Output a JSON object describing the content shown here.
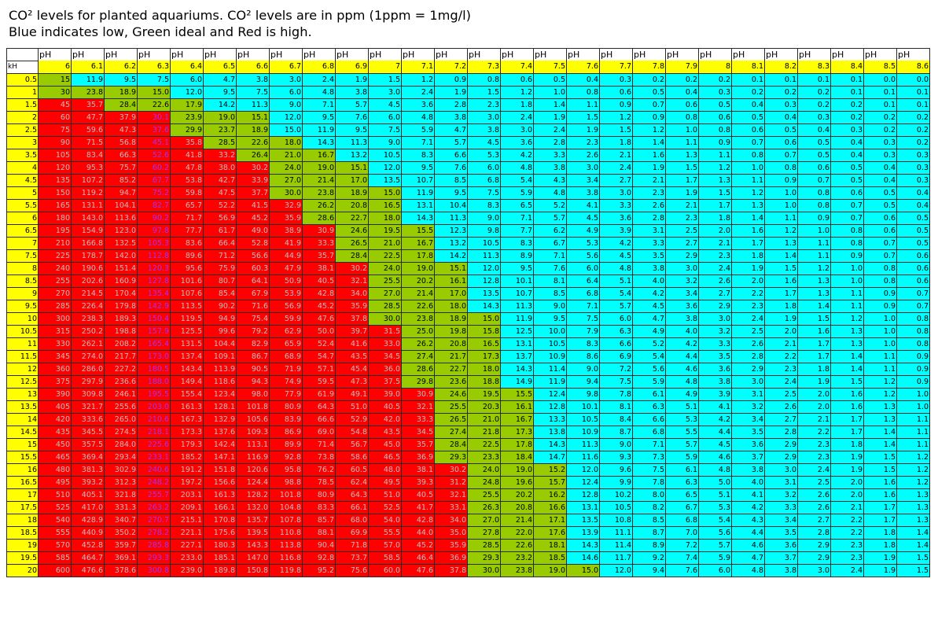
{
  "title_line1": "CO² levels for planted aquariums. CO² levels are in ppm (1ppm = 1mg/l)",
  "title_line2": "Blue indicates low, Green ideal and Red is high.",
  "colors": {
    "low": "#00ffff",
    "ideal": "#99cc00",
    "high": "#ff0000",
    "header": "#ffff00",
    "text_normal": "#000000",
    "text_high": "#c0c0c0",
    "text_high_alt": "#9933ff"
  },
  "chart_data": {
    "type": "table",
    "header_prefix": "pH",
    "row_header_label": "kH",
    "ph_labels": [
      "6",
      "6.1",
      "6.2",
      "6.3",
      "6.4",
      "6.5",
      "6.6",
      "6.7",
      "6.8",
      "6.9",
      "7",
      "7.1",
      "7.2",
      "7.3",
      "7.4",
      "7.5",
      "7.6",
      "7.7",
      "7.8",
      "7.9",
      "8",
      "8.1",
      "8.2",
      "8.3",
      "8.4",
      "8.5",
      "8.6"
    ],
    "kh_labels": [
      "0.5",
      "1",
      "1.5",
      "2",
      "2.5",
      "3",
      "3.5",
      "4",
      "4.5",
      "5",
      "5.5",
      "6",
      "6.5",
      "7",
      "7.5",
      "8",
      "8.5",
      "9",
      "9.5",
      "10",
      "10.5",
      "11",
      "11.5",
      "12",
      "12.5",
      "13",
      "13.5",
      "14",
      "14.5",
      "15",
      "15.5",
      "16",
      "16.5",
      "17",
      "17.5",
      "18",
      "18.5",
      "19",
      "19.5",
      "20"
    ],
    "first_column_formatted": [
      "15",
      "30",
      "45",
      "60",
      "75",
      "90",
      "105",
      "120",
      "135",
      "150",
      "165",
      "180",
      "195",
      "210",
      "225",
      "240",
      "255",
      "270",
      "285",
      "300",
      "315",
      "330",
      "345",
      "360",
      "375",
      "390",
      "405",
      "420",
      "435",
      "450",
      "465",
      "480",
      "495",
      "510",
      "525",
      "540",
      "555",
      "570",
      "585",
      "600"
    ],
    "ph_column_factors": [
      30,
      23.83,
      18.93,
      15.04,
      11.95,
      9.49,
      7.54,
      5.99,
      4.76,
      3.78,
      3.0,
      2.38,
      1.89,
      1.5,
      1.19,
      0.95,
      0.75,
      0.6,
      0.47,
      0.38,
      0.3,
      0.24,
      0.19,
      0.15,
      0.12,
      0.095,
      0.075
    ],
    "decimal_places": 1,
    "purple_text_column": "6.3",
    "category_rule": {
      "low": "value < 15",
      "ideal": "15 <= value <= 30",
      "high": "value > 30"
    }
  }
}
